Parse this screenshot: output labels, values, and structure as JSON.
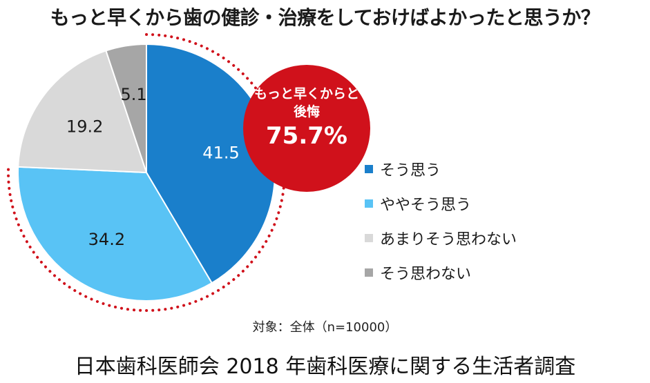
{
  "title": "もっと早くから歯の健診・治療をしておけばよかったと思うか？",
  "chart_data": {
    "type": "pie",
    "categories": [
      "そう思う",
      "ややそう思う",
      "あまりそう思わない",
      "そう思わない"
    ],
    "values": [
      41.5,
      34.2,
      19.2,
      5.1
    ],
    "labels": [
      "41.5",
      "34.2",
      "19.2",
      "5.1"
    ],
    "colors": [
      "#1a7fcb",
      "#59c3f5",
      "#d9d9d9",
      "#a6a6a6"
    ],
    "label_colors": [
      "#ffffff",
      "#1a1a1a",
      "#1a1a1a",
      "#1a1a1a"
    ],
    "start_angle_deg": 0,
    "direction": "clockwise",
    "legend_position": "right"
  },
  "callout": {
    "line1": "もっと早くからと",
    "line2": "後悔",
    "value": "75.7%",
    "color": "#d0111b"
  },
  "note": "対象：全体（n=10000）",
  "source": "日本歯科医師会 2018 年歯科医療に関する生活者調査"
}
